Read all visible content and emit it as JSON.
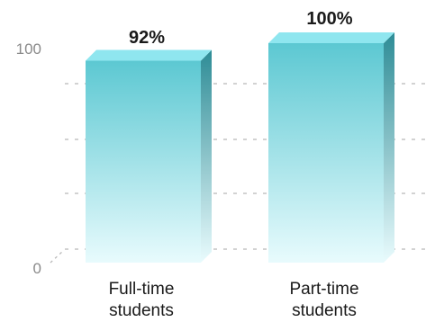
{
  "chart_data": {
    "type": "bar",
    "categories": [
      "Full-time students",
      "Part-time students"
    ],
    "category_lines": [
      [
        "Full-time",
        "students"
      ],
      [
        "Part-time",
        "students"
      ]
    ],
    "values": [
      92,
      100
    ],
    "data_labels": [
      "92%",
      "100%"
    ],
    "y_ticks": [
      "0",
      "100"
    ],
    "ylim": [
      0,
      100
    ],
    "grid": true,
    "colors": {
      "bar_top": "#5cc8d2",
      "bar_bottom": "#e8fbfd",
      "bar_cap": "#8fe6ef",
      "bar_side": "#2e8c96",
      "grid": "#b8b8b8"
    }
  }
}
